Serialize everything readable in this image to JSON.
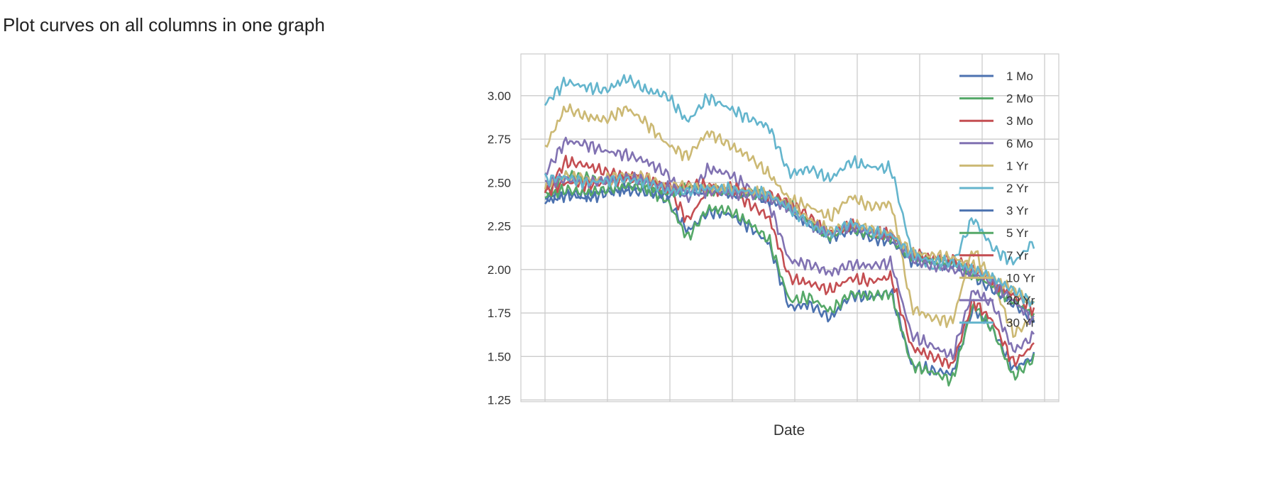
{
  "heading": "Plot curves on all columns in one graph",
  "chart_data": {
    "type": "line",
    "title": "",
    "xlabel": "Date",
    "ylabel": "",
    "x_tick_labels_visible": false,
    "n_points": 236,
    "yticks": [
      "1.25",
      "1.50",
      "1.75",
      "2.00",
      "2.25",
      "2.50",
      "2.75",
      "3.00"
    ],
    "ylim": [
      1.24,
      3.24
    ],
    "grid": true,
    "legend": "top-right",
    "series": [
      {
        "name": "1 Mo",
        "color": "#4c72b0",
        "keypoints": [
          2.4,
          2.43,
          2.41,
          2.44,
          2.46,
          2.44,
          2.4,
          2.22,
          2.33,
          2.32,
          2.25,
          2.15,
          1.78,
          1.8,
          1.72,
          1.85,
          1.84,
          1.87,
          1.45,
          1.42,
          1.4,
          1.78,
          1.65,
          1.43,
          1.5
        ]
      },
      {
        "name": "2 Mo",
        "color": "#55a868",
        "keypoints": [
          2.42,
          2.55,
          2.53,
          2.5,
          2.53,
          2.47,
          2.4,
          2.18,
          2.35,
          2.34,
          2.27,
          2.17,
          1.82,
          1.84,
          1.76,
          1.86,
          1.85,
          1.86,
          1.45,
          1.41,
          1.36,
          1.8,
          1.65,
          1.38,
          1.49
        ]
      },
      {
        "name": "3 Mo",
        "color": "#c44e52",
        "keypoints": [
          2.44,
          2.62,
          2.6,
          2.56,
          2.54,
          2.52,
          2.48,
          2.28,
          2.46,
          2.46,
          2.38,
          2.3,
          1.95,
          1.92,
          1.88,
          1.95,
          1.93,
          1.96,
          1.55,
          1.5,
          1.45,
          1.82,
          1.7,
          1.46,
          1.57
        ]
      },
      {
        "name": "6 Mo",
        "color": "#8172b2",
        "keypoints": [
          2.55,
          2.74,
          2.72,
          2.68,
          2.66,
          2.62,
          2.55,
          2.4,
          2.58,
          2.55,
          2.47,
          2.38,
          2.05,
          2.03,
          1.98,
          2.03,
          2.02,
          2.04,
          1.62,
          1.56,
          1.5,
          1.88,
          1.8,
          1.53,
          1.62
        ]
      },
      {
        "name": "1 Yr",
        "color": "#ccb974",
        "keypoints": [
          2.7,
          2.93,
          2.88,
          2.86,
          2.93,
          2.84,
          2.72,
          2.65,
          2.79,
          2.72,
          2.65,
          2.55,
          2.4,
          2.36,
          2.3,
          2.42,
          2.36,
          2.38,
          1.78,
          1.72,
          1.7,
          2.12,
          1.92,
          1.63,
          1.72
        ]
      },
      {
        "name": "2 Yr",
        "color": "#64b5cd",
        "keypoints": [
          2.95,
          3.08,
          3.05,
          3.03,
          3.1,
          3.03,
          3.0,
          2.85,
          2.99,
          2.93,
          2.87,
          2.82,
          2.55,
          2.58,
          2.52,
          2.62,
          2.59,
          2.58,
          2.1,
          2.02,
          2.02,
          2.3,
          2.12,
          2.04,
          2.16
        ]
      },
      {
        "name": "3 Yr",
        "color": "#4c72b0",
        "keypoints": [
          2.4,
          2.44,
          2.43,
          2.45,
          2.47,
          2.46,
          2.42,
          2.46,
          2.45,
          2.44,
          2.43,
          2.4,
          2.35,
          2.26,
          2.18,
          2.23,
          2.18,
          2.16,
          2.05,
          2.04,
          2.03,
          1.96,
          1.88,
          1.8,
          1.72
        ]
      },
      {
        "name": "5 Yr",
        "color": "#55a868",
        "keypoints": [
          2.42,
          2.46,
          2.44,
          2.46,
          2.48,
          2.47,
          2.44,
          2.48,
          2.46,
          2.45,
          2.44,
          2.42,
          2.37,
          2.27,
          2.19,
          2.24,
          2.2,
          2.18,
          2.07,
          2.05,
          2.04,
          1.98,
          1.9,
          1.82,
          1.74
        ]
      },
      {
        "name": "7 Yr",
        "color": "#c44e52",
        "keypoints": [
          2.45,
          2.5,
          2.49,
          2.5,
          2.53,
          2.51,
          2.46,
          2.49,
          2.48,
          2.47,
          2.45,
          2.43,
          2.39,
          2.3,
          2.21,
          2.26,
          2.22,
          2.2,
          2.09,
          2.07,
          2.06,
          2.01,
          1.93,
          1.85,
          1.77
        ]
      },
      {
        "name": "10 Yr",
        "color": "#ccb974",
        "keypoints": [
          2.48,
          2.54,
          2.52,
          2.52,
          2.55,
          2.53,
          2.48,
          2.48,
          2.47,
          2.46,
          2.45,
          2.43,
          2.37,
          2.29,
          2.22,
          2.27,
          2.23,
          2.21,
          2.1,
          2.08,
          2.07,
          2.02,
          1.95,
          1.88,
          1.8
        ]
      },
      {
        "name": "20 Yr",
        "color": "#8172b2",
        "keypoints": [
          2.5,
          2.52,
          2.5,
          2.51,
          2.53,
          2.51,
          2.47,
          2.45,
          2.45,
          2.44,
          2.43,
          2.41,
          2.35,
          2.26,
          2.2,
          2.25,
          2.21,
          2.19,
          2.06,
          2.02,
          2.0,
          1.98,
          1.92,
          1.82,
          1.7
        ]
      },
      {
        "name": "30 Yr",
        "color": "#64b5cd",
        "keypoints": [
          2.52,
          2.53,
          2.5,
          2.51,
          2.52,
          2.5,
          2.45,
          2.45,
          2.47,
          2.46,
          2.45,
          2.43,
          2.35,
          2.26,
          2.2,
          2.27,
          2.22,
          2.2,
          2.08,
          2.05,
          2.04,
          2.0,
          1.95,
          1.88,
          1.8
        ]
      }
    ]
  }
}
